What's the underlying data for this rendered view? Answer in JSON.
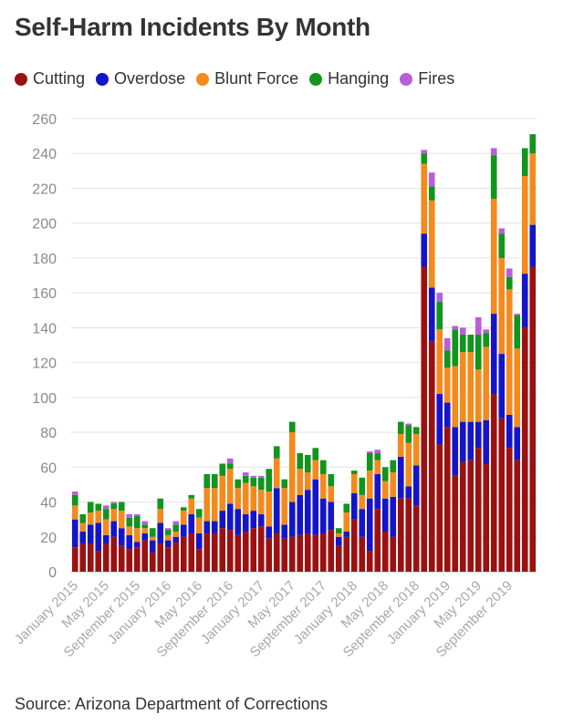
{
  "title": "Self-Harm Incidents By Month",
  "source": "Source: Arizona Department of Corrections",
  "legend": [
    {
      "name": "Cutting",
      "color": "#9b1111"
    },
    {
      "name": "Overdose",
      "color": "#1515c8"
    },
    {
      "name": "Blunt Force",
      "color": "#f48a1d"
    },
    {
      "name": "Hanging",
      "color": "#11951c"
    },
    {
      "name": "Fires",
      "color": "#b85fd8"
    }
  ],
  "chart_data": {
    "type": "bar",
    "stacked": true,
    "ylim": [
      0,
      260
    ],
    "y_ticks": [
      0,
      20,
      40,
      60,
      80,
      100,
      120,
      140,
      160,
      180,
      200,
      220,
      240,
      260
    ],
    "grid": true,
    "legend_position": "top-left",
    "x_tick_labels": [
      "January 2015",
      "May 2015",
      "September 2015",
      "January 2016",
      "May 2016",
      "September 2016",
      "January 2017",
      "May 2017",
      "September 2017",
      "January 2018",
      "May 2018",
      "September 2018",
      "January 2019",
      "May 2019",
      "September 2019"
    ],
    "x_tick_every": 4,
    "categories": [
      "Jan 2015",
      "Feb 2015",
      "Mar 2015",
      "Apr 2015",
      "May 2015",
      "Jun 2015",
      "Jul 2015",
      "Aug 2015",
      "Sep 2015",
      "Oct 2015",
      "Nov 2015",
      "Dec 2015",
      "Jan 2016",
      "Feb 2016",
      "Mar 2016",
      "Apr 2016",
      "May 2016",
      "Jun 2016",
      "Jul 2016",
      "Aug 2016",
      "Sep 2016",
      "Oct 2016",
      "Nov 2016",
      "Dec 2016",
      "Jan 2017",
      "Feb 2017",
      "Mar 2017",
      "Apr 2017",
      "May 2017",
      "Jun 2017",
      "Jul 2017",
      "Aug 2017",
      "Sep 2017",
      "Oct 2017",
      "Nov 2017",
      "Dec 2017",
      "Jan 2018",
      "Feb 2018",
      "Mar 2018",
      "Apr 2018",
      "May 2018",
      "Jun 2018",
      "Jul 2018",
      "Aug 2018",
      "Sep 2018",
      "Oct 2018",
      "Nov 2018",
      "Dec 2018",
      "Jan 2019",
      "Feb 2019",
      "Mar 2019",
      "Apr 2019",
      "May 2019",
      "Jun 2019",
      "Jul 2019",
      "Aug 2019",
      "Sep 2019",
      "Oct 2019",
      "Nov 2019",
      "Dec 2019"
    ],
    "series": [
      {
        "name": "Cutting",
        "color": "#9b1111",
        "values": [
          14,
          16,
          16,
          12,
          16,
          20,
          15,
          13,
          14,
          18,
          11,
          16,
          14,
          17,
          20,
          22,
          13,
          22,
          22,
          25,
          24,
          21,
          23,
          25,
          26,
          19,
          22,
          19,
          20,
          21,
          22,
          21,
          22,
          24,
          15,
          20,
          30,
          20,
          12,
          36,
          23,
          20,
          42,
          42,
          38,
          175,
          132,
          73,
          83,
          55,
          63,
          64,
          71,
          62,
          102,
          88,
          71,
          64,
          140,
          175
        ]
      },
      {
        "name": "Overdose",
        "color": "#1515c8",
        "values": [
          16,
          7,
          11,
          16,
          5,
          9,
          10,
          8,
          3,
          4,
          7,
          12,
          4,
          3,
          7,
          11,
          9,
          7,
          7,
          10,
          15,
          15,
          10,
          10,
          7,
          7,
          26,
          8,
          20,
          23,
          25,
          32,
          20,
          16,
          5,
          3,
          15,
          16,
          30,
          20,
          19,
          23,
          24,
          7,
          23,
          19,
          31,
          29,
          14,
          28,
          23,
          22,
          15,
          25,
          46,
          37,
          19,
          19,
          31,
          24
        ]
      },
      {
        "name": "Blunt Force",
        "color": "#f48a1d",
        "values": [
          8,
          5,
          7,
          7,
          9,
          7,
          10,
          5,
          8,
          3,
          2,
          8,
          3,
          3,
          8,
          9,
          9,
          19,
          19,
          20,
          20,
          12,
          18,
          14,
          14,
          20,
          17,
          21,
          40,
          15,
          10,
          11,
          14,
          9,
          2,
          11,
          11,
          8,
          16,
          8,
          10,
          14,
          13,
          25,
          18,
          40,
          50,
          37,
          20,
          35,
          40,
          40,
          30,
          42,
          66,
          55,
          72,
          45,
          56,
          41
        ]
      },
      {
        "name": "Hanging",
        "color": "#11951c",
        "values": [
          6,
          5,
          6,
          4,
          6,
          3,
          5,
          5,
          7,
          2,
          5,
          6,
          3,
          4,
          2,
          2,
          5,
          8,
          8,
          7,
          3,
          5,
          4,
          5,
          7,
          13,
          7,
          5,
          6,
          9,
          10,
          7,
          8,
          7,
          3,
          5,
          2,
          10,
          10,
          4,
          8,
          7,
          7,
          10,
          4,
          6,
          8,
          16,
          10,
          21,
          10,
          10,
          20,
          8,
          25,
          14,
          7,
          19,
          16,
          11
        ]
      },
      {
        "name": "Fires",
        "color": "#b85fd8",
        "values": [
          2,
          0,
          0,
          0,
          2,
          1,
          0,
          2,
          1,
          2,
          0,
          0,
          1,
          2,
          0,
          0,
          0,
          0,
          0,
          0,
          3,
          0,
          2,
          1,
          1,
          0,
          0,
          0,
          0,
          0,
          0,
          0,
          0,
          0,
          0,
          0,
          0,
          0,
          1,
          2,
          0,
          0,
          0,
          1,
          0,
          2,
          8,
          5,
          7,
          2,
          4,
          0,
          10,
          2,
          4,
          3,
          5,
          1,
          0,
          0
        ]
      }
    ]
  }
}
